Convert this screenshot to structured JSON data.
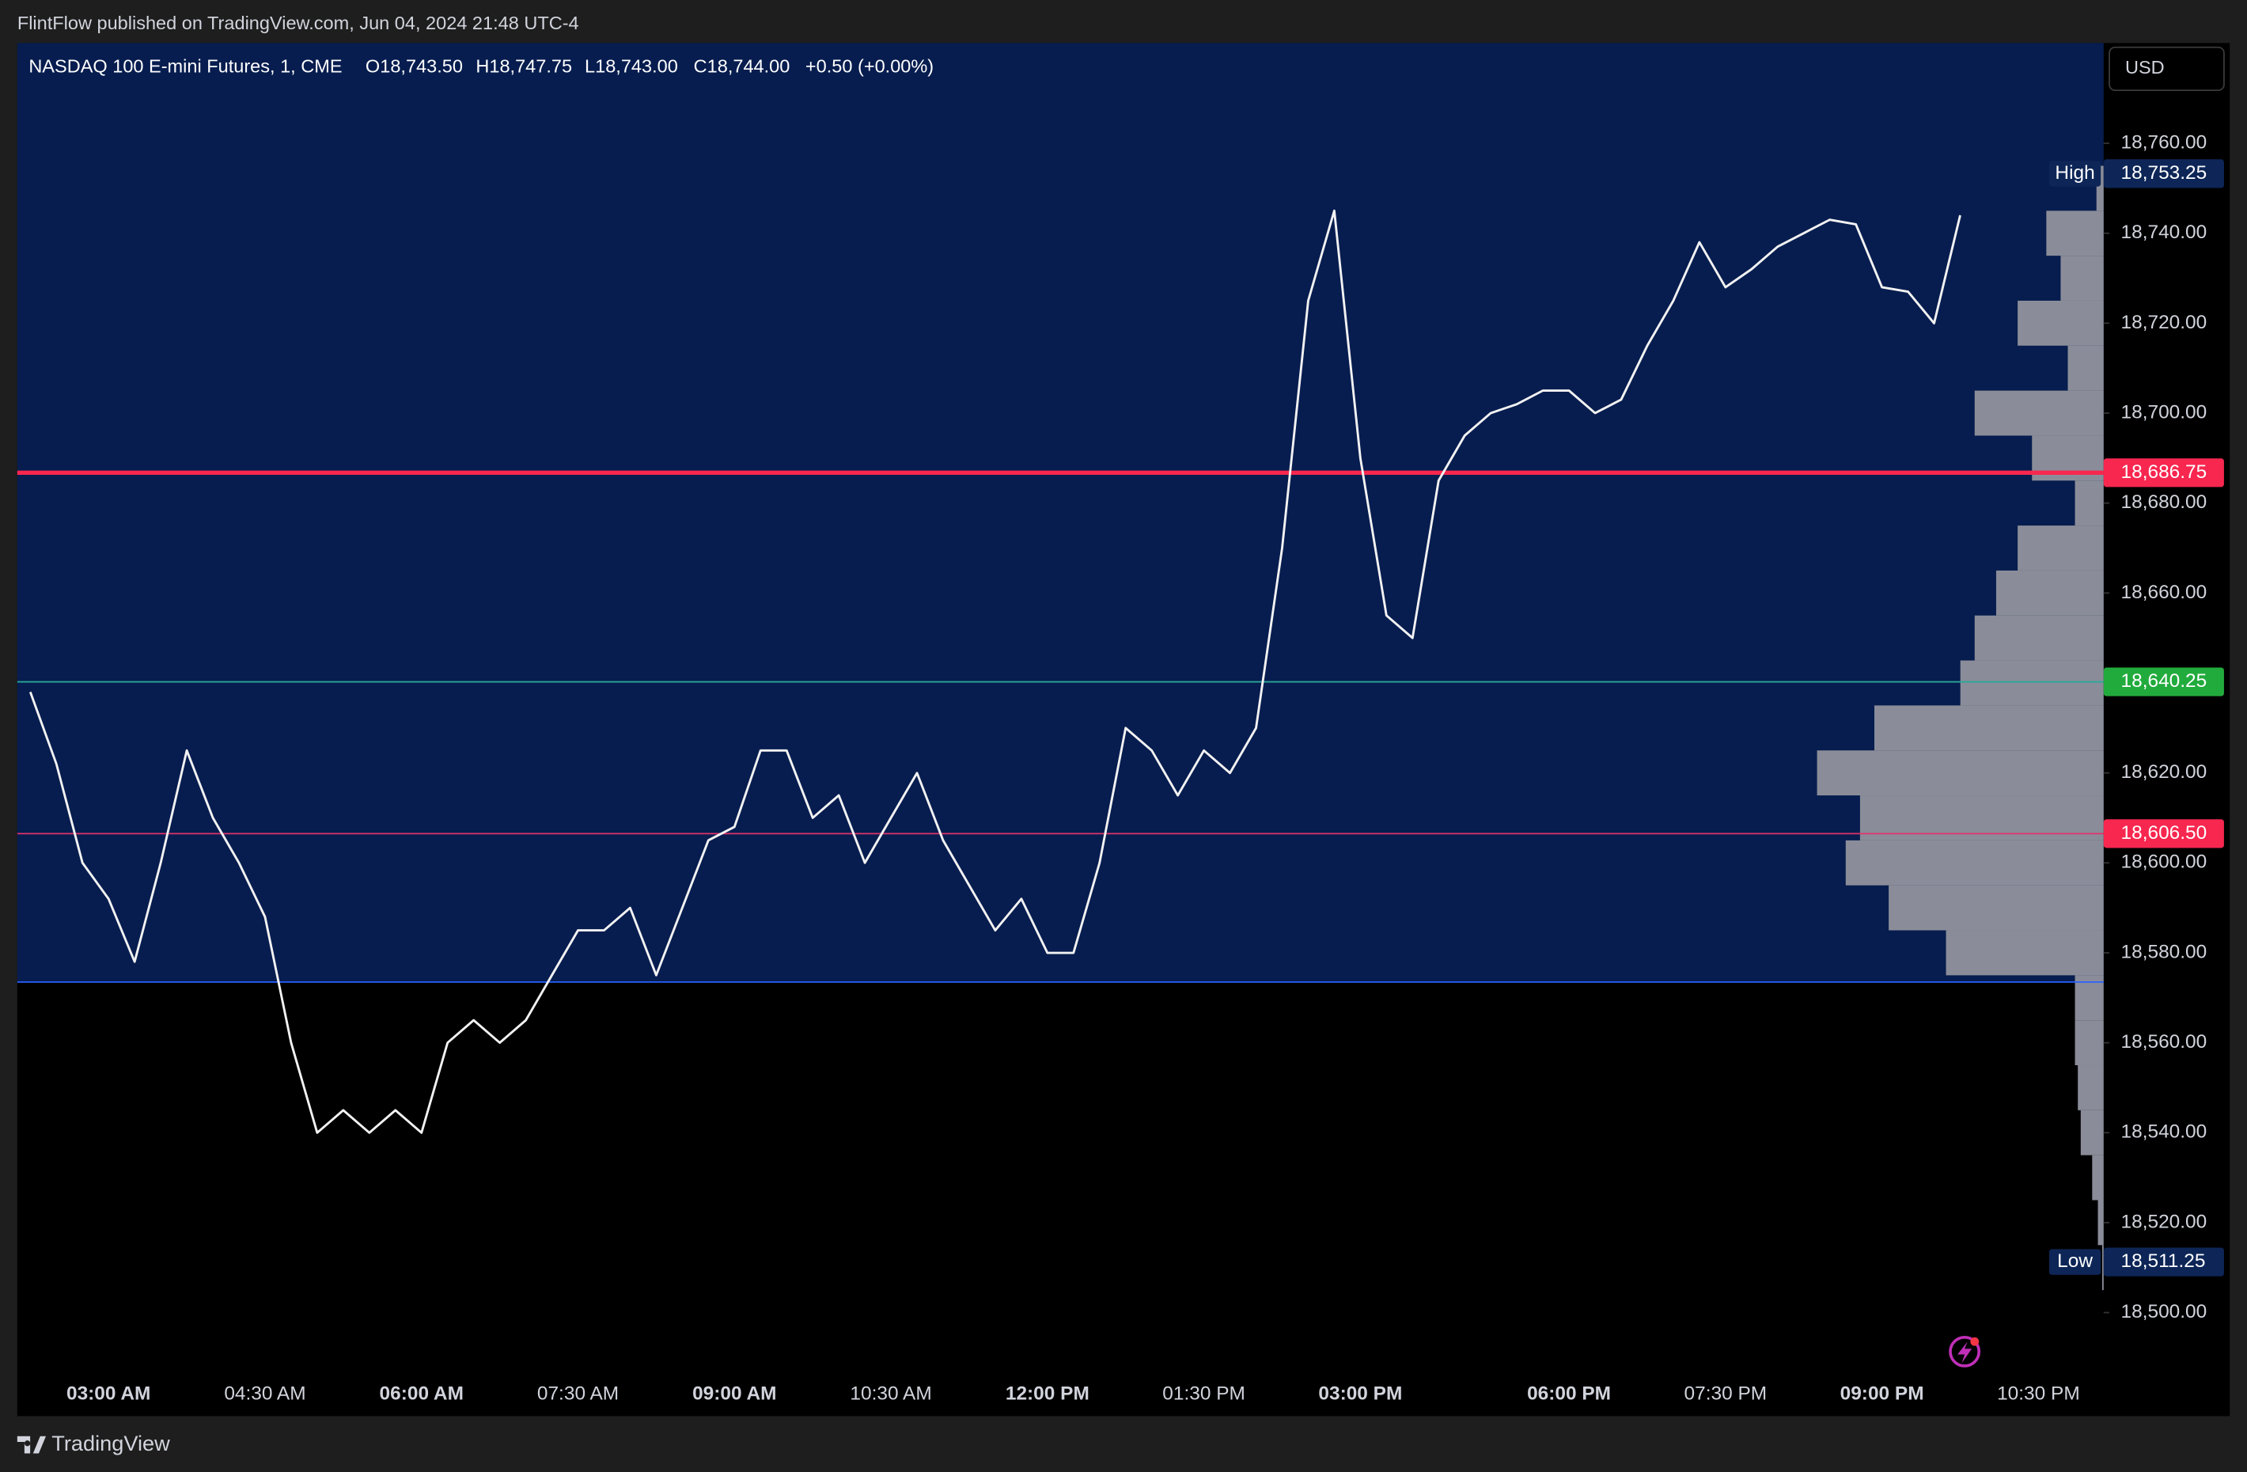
{
  "header": {
    "published": "FlintFlow published on TradingView.com, Jun 04, 2024 21:48 UTC-4"
  },
  "footer": {
    "brand": "TradingView"
  },
  "chart_data": {
    "type": "line",
    "symbol": "NASDAQ 100 E-mini Futures, 1, CME",
    "ohlc": [
      "O18,743.50",
      "H18,747.75",
      "L18,743.00",
      "C18,744.00",
      "+0.50 (+0.00%)"
    ],
    "currency": "USD",
    "categories": [
      null,
      null,
      null,
      "03:00 AM",
      null,
      null,
      null,
      null,
      null,
      "04:30 AM",
      null,
      null,
      null,
      null,
      null,
      "06:00 AM",
      null,
      null,
      null,
      null,
      null,
      "07:30 AM",
      null,
      null,
      null,
      null,
      null,
      "09:00 AM",
      null,
      null,
      null,
      null,
      null,
      "10:30 AM",
      null,
      null,
      null,
      null,
      null,
      "12:00 PM",
      null,
      null,
      null,
      null,
      null,
      "01:30 PM",
      null,
      null,
      null,
      null,
      null,
      "03:00 PM",
      null,
      null,
      null,
      null,
      null,
      null,
      null,
      "06:00 PM",
      null,
      null,
      null,
      null,
      null,
      "07:30 PM",
      null,
      null,
      null,
      null,
      null,
      "09:00 PM",
      null,
      null,
      null,
      null,
      null,
      "10:30 PM",
      null,
      null
    ],
    "values": [
      18638,
      18622,
      18600,
      18592,
      18578,
      18600,
      18625,
      18610,
      18600,
      18588,
      18560,
      18540,
      18545,
      18540,
      18545,
      18540,
      18560,
      18565,
      18560,
      18565,
      18575,
      18585,
      18585,
      18590,
      18575,
      18590,
      18605,
      18608,
      18625,
      18625,
      18610,
      18615,
      18600,
      18610,
      18620,
      18605,
      18595,
      18585,
      18592,
      18580,
      18580,
      18600,
      18630,
      18625,
      18615,
      18625,
      18620,
      18630,
      18670,
      18725,
      18745,
      18690,
      18655,
      18650,
      18685,
      18695,
      18700,
      18702,
      18705,
      18705,
      18700,
      18703,
      18715,
      18725,
      18738,
      18728,
      18732,
      18737,
      18740,
      18743,
      18742,
      18728,
      18727,
      18720,
      18744,
      null,
      null,
      null,
      null,
      null
    ],
    "color": "#f2f2f2",
    "ylim": [
      18487.5,
      18782.3
    ],
    "yticks": [
      {
        "value": 18500,
        "label": "18,500.00"
      },
      {
        "value": 18520,
        "label": "18,520.00"
      },
      {
        "value": 18540,
        "label": "18,540.00"
      },
      {
        "value": 18560,
        "label": "18,560.00"
      },
      {
        "value": 18580,
        "label": "18,580.00"
      },
      {
        "value": 18600,
        "label": "18,600.00"
      },
      {
        "value": 18620,
        "label": "18,620.00"
      },
      {
        "value": 18640,
        "label": "18,640.00"
      },
      {
        "value": 18660,
        "label": "18,660.00"
      },
      {
        "value": 18680,
        "label": "18,680.00"
      },
      {
        "value": 18700,
        "label": "18,700.00"
      },
      {
        "value": 18720,
        "label": "18,720.00"
      },
      {
        "value": 18740,
        "label": "18,740.00"
      },
      {
        "value": 18760,
        "label": "18,760.00"
      }
    ],
    "levels": [
      {
        "value": 18686.75,
        "label": "18,686.75",
        "color": "#f7274f",
        "width": 3
      },
      {
        "value": 18640.25,
        "label": "18,640.25",
        "color": "#22ab3d",
        "line_color": "#2aa89a",
        "width": 1
      },
      {
        "value": 18606.5,
        "label": "18,606.50",
        "color": "#f7274f",
        "line_color": "#e0336a",
        "width": 1
      },
      {
        "value": 18573.5,
        "color": "#2962ff",
        "width": 1
      }
    ],
    "shade_above": 18573.5,
    "shade_color": "#071d4f",
    "high": {
      "name": "High",
      "value": 18753.25,
      "label": "18,753.25"
    },
    "low": {
      "name": "Low",
      "value": 18511.25,
      "label": "18,511.25"
    },
    "volume_profile": {
      "color": "#8a8d99",
      "prices": [
        18510,
        18520,
        18530,
        18540,
        18550,
        18560,
        18570,
        18580,
        18590,
        18600,
        18610,
        18620,
        18630,
        18640,
        18650,
        18660,
        18670,
        18680,
        18690,
        18700,
        18710,
        18720,
        18730,
        18740,
        18750
      ],
      "volumes": [
        1,
        4,
        8,
        16,
        18,
        20,
        20,
        110,
        150,
        180,
        170,
        200,
        160,
        100,
        90,
        75,
        60,
        20,
        50,
        90,
        25,
        60,
        30,
        40,
        5
      ]
    }
  }
}
